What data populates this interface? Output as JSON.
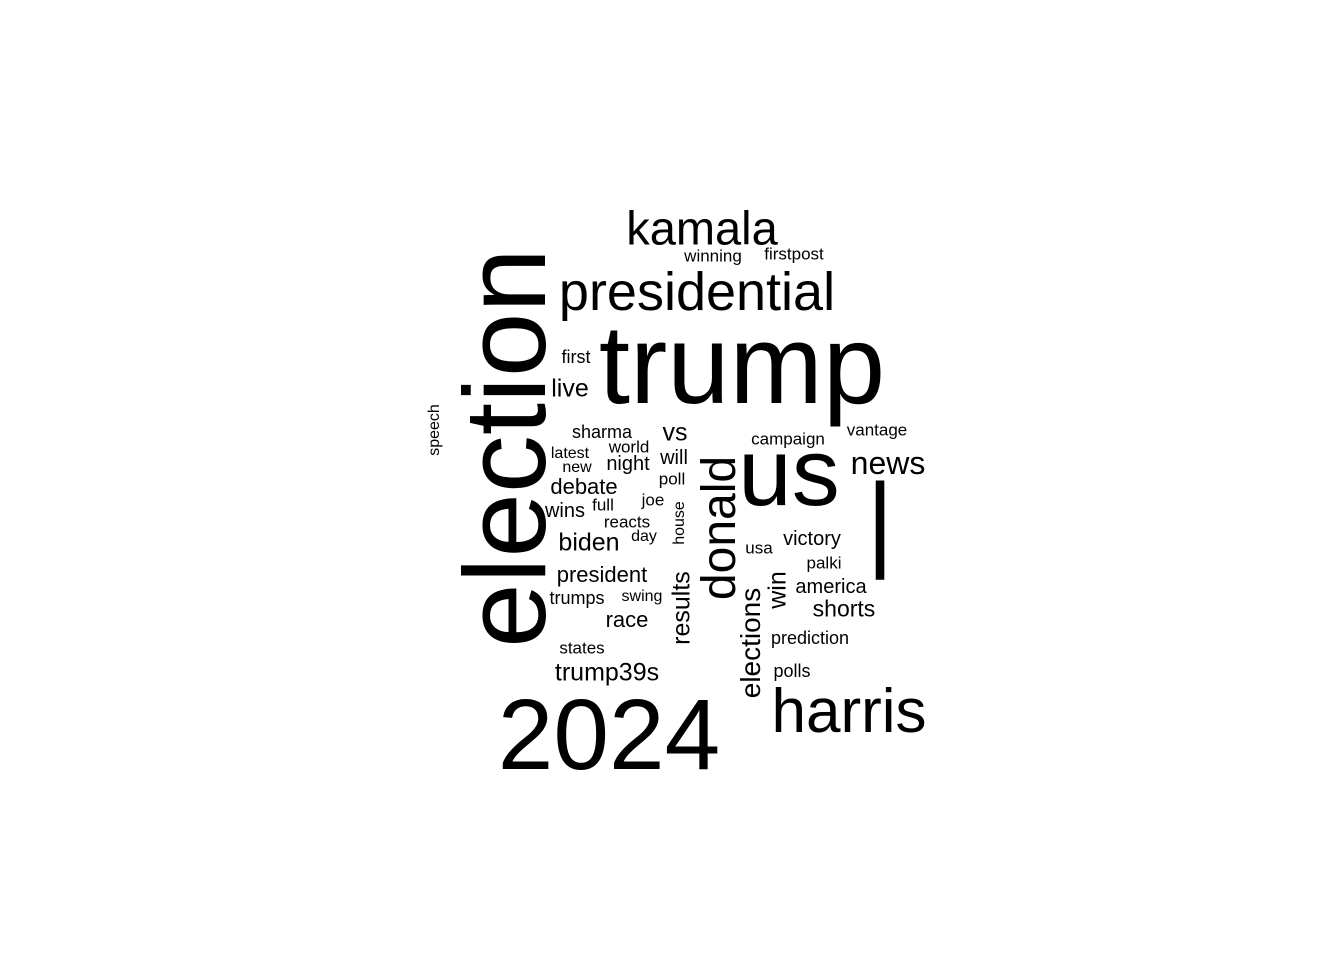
{
  "word_cloud": {
    "text_color": "#000000",
    "background_color": "#ffffff",
    "words": [
      {
        "id": "trump",
        "text": "trump",
        "orientation": "horizontal"
      },
      {
        "id": "election",
        "text": "election",
        "orientation": "vertical"
      },
      {
        "id": "2024",
        "text": "2024",
        "orientation": "horizontal"
      },
      {
        "id": "us",
        "text": "us",
        "orientation": "horizontal"
      },
      {
        "id": "harris",
        "text": "harris",
        "orientation": "horizontal"
      },
      {
        "id": "presidential",
        "text": "presidential",
        "orientation": "horizontal"
      },
      {
        "id": "kamala",
        "text": "kamala",
        "orientation": "horizontal"
      },
      {
        "id": "donald",
        "text": "donald",
        "orientation": "vertical"
      },
      {
        "id": "pipe",
        "text": "|",
        "orientation": "horizontal"
      },
      {
        "id": "news",
        "text": "news",
        "orientation": "horizontal"
      },
      {
        "id": "elections",
        "text": "elections",
        "orientation": "vertical"
      },
      {
        "id": "results",
        "text": "results",
        "orientation": "vertical"
      },
      {
        "id": "trump39s",
        "text": "trump39s",
        "orientation": "horizontal"
      },
      {
        "id": "live",
        "text": "live",
        "orientation": "horizontal"
      },
      {
        "id": "vs",
        "text": "vs",
        "orientation": "horizontal"
      },
      {
        "id": "biden",
        "text": "biden",
        "orientation": "horizontal"
      },
      {
        "id": "debate",
        "text": "debate",
        "orientation": "horizontal"
      },
      {
        "id": "president",
        "text": "president",
        "orientation": "horizontal"
      },
      {
        "id": "shorts",
        "text": "shorts",
        "orientation": "horizontal"
      },
      {
        "id": "win",
        "text": "win",
        "orientation": "vertical"
      },
      {
        "id": "race",
        "text": "race",
        "orientation": "horizontal"
      },
      {
        "id": "night",
        "text": "night",
        "orientation": "horizontal"
      },
      {
        "id": "will",
        "text": "will",
        "orientation": "horizontal"
      },
      {
        "id": "victory",
        "text": "victory",
        "orientation": "horizontal"
      },
      {
        "id": "america",
        "text": "america",
        "orientation": "horizontal"
      },
      {
        "id": "wins",
        "text": "wins",
        "orientation": "horizontal"
      },
      {
        "id": "sharma",
        "text": "sharma",
        "orientation": "horizontal"
      },
      {
        "id": "first",
        "text": "first",
        "orientation": "horizontal"
      },
      {
        "id": "trumps",
        "text": "trumps",
        "orientation": "horizontal"
      },
      {
        "id": "polls",
        "text": "polls",
        "orientation": "horizontal"
      },
      {
        "id": "prediction",
        "text": "prediction",
        "orientation": "horizontal"
      },
      {
        "id": "winning",
        "text": "winning",
        "orientation": "horizontal"
      },
      {
        "id": "firstpost",
        "text": "firstpost",
        "orientation": "horizontal"
      },
      {
        "id": "campaign",
        "text": "campaign",
        "orientation": "horizontal"
      },
      {
        "id": "vantage",
        "text": "vantage",
        "orientation": "horizontal"
      },
      {
        "id": "world",
        "text": "world",
        "orientation": "horizontal"
      },
      {
        "id": "latest",
        "text": "latest",
        "orientation": "horizontal"
      },
      {
        "id": "new",
        "text": "new",
        "orientation": "horizontal"
      },
      {
        "id": "poll",
        "text": "poll",
        "orientation": "horizontal"
      },
      {
        "id": "joe",
        "text": "joe",
        "orientation": "horizontal"
      },
      {
        "id": "full",
        "text": "full",
        "orientation": "horizontal"
      },
      {
        "id": "reacts",
        "text": "reacts",
        "orientation": "horizontal"
      },
      {
        "id": "day",
        "text": "day",
        "orientation": "horizontal"
      },
      {
        "id": "house",
        "text": "house",
        "orientation": "vertical"
      },
      {
        "id": "usa",
        "text": "usa",
        "orientation": "horizontal"
      },
      {
        "id": "palki",
        "text": "palki",
        "orientation": "horizontal"
      },
      {
        "id": "swing",
        "text": "swing",
        "orientation": "horizontal"
      },
      {
        "id": "states",
        "text": "states",
        "orientation": "horizontal"
      },
      {
        "id": "speech",
        "text": "speech",
        "orientation": "vertical"
      }
    ]
  }
}
